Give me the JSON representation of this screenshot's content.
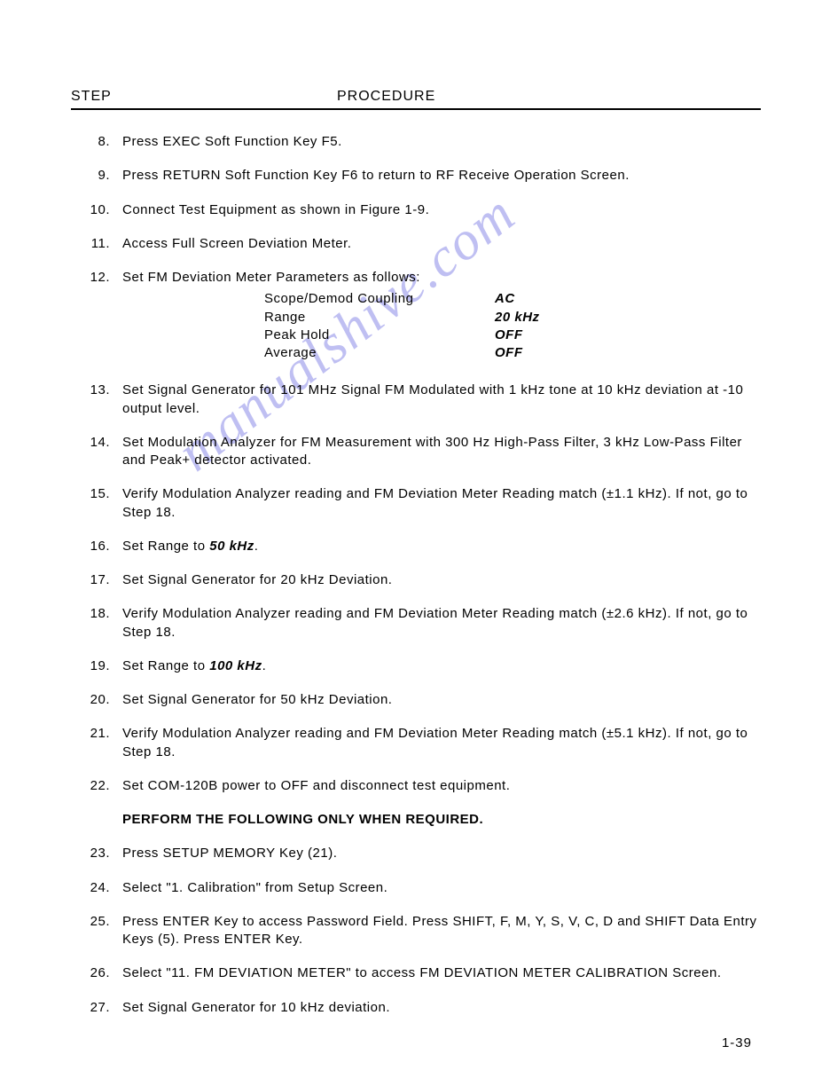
{
  "header": {
    "step_label": "STEP",
    "procedure_label": "PROCEDURE"
  },
  "watermark": "manualshive.com",
  "steps": [
    {
      "num": "8.",
      "text": "Press EXEC Soft Function Key F5."
    },
    {
      "num": "9.",
      "text": "Press RETURN Soft Function Key F6 to return to RF Receive Operation Screen."
    },
    {
      "num": "10.",
      "text": "Connect Test Equipment as shown in Figure 1-9."
    },
    {
      "num": "11.",
      "text": "Access Full Screen Deviation Meter."
    },
    {
      "num": "12.",
      "text": "Set FM Deviation Meter Parameters as follows:"
    },
    {
      "num": "13.",
      "text": "Set Signal Generator for 101 MHz Signal FM Modulated with 1 kHz tone at 10 kHz deviation at -10 output level."
    },
    {
      "num": "14.",
      "text": "Set Modulation Analyzer for FM Measurement with 300 Hz High-Pass Filter, 3 kHz Low-Pass Filter and Peak+ detector activated."
    },
    {
      "num": "15.",
      "text": "Verify Modulation Analyzer reading and FM Deviation Meter Reading match (±1.1 kHz).  If not, go to Step 18."
    },
    {
      "num": "16.",
      "text_pre": "Set Range to ",
      "bold_italic": "50 kHz",
      "text_post": "."
    },
    {
      "num": "17.",
      "text": "Set Signal Generator for 20 kHz Deviation."
    },
    {
      "num": "18.",
      "text": "Verify Modulation Analyzer reading and FM Deviation Meter Reading match (±2.6 kHz).  If not, go to Step 18."
    },
    {
      "num": "19.",
      "text_pre": "Set Range to ",
      "bold_italic": "100 kHz",
      "text_post": "."
    },
    {
      "num": "20.",
      "text": "Set Signal Generator for 50 kHz Deviation."
    },
    {
      "num": "21.",
      "text": "Verify Modulation Analyzer reading and FM Deviation Meter Reading match (±5.1 kHz).  If not, go to Step 18."
    },
    {
      "num": "22.",
      "text": "Set COM-120B power to OFF and disconnect test equipment."
    },
    {
      "num": "",
      "bold_text": "PERFORM THE FOLLOWING ONLY WHEN REQUIRED."
    },
    {
      "num": "23.",
      "text": "Press SETUP MEMORY Key (21)."
    },
    {
      "num": "24.",
      "text": "Select \"1. Calibration\" from Setup Screen."
    },
    {
      "num": "25.",
      "text": "Press ENTER Key to access Password Field.  Press SHIFT, F, M, Y, S, V, C, D and SHIFT Data Entry Keys (5).  Press ENTER Key."
    },
    {
      "num": "26.",
      "text": "Select \"11. FM DEVIATION METER\" to access FM DEVIATION METER CALIBRATION Screen."
    },
    {
      "num": "27.",
      "text": "Set Signal Generator for 10 kHz deviation."
    }
  ],
  "params": [
    {
      "label": "Scope/Demod Coupling",
      "value": "AC"
    },
    {
      "label": "Range",
      "value": "20 kHz"
    },
    {
      "label": "Peak Hold",
      "value": "OFF"
    },
    {
      "label": "Average",
      "value": "OFF"
    }
  ],
  "page_number": "1-39"
}
